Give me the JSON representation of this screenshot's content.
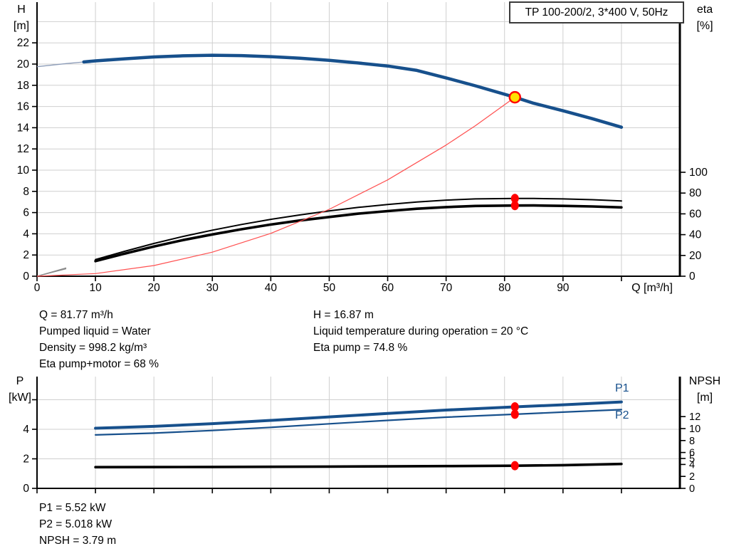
{
  "title_box": {
    "label": "TP 100-200/2, 3*400 V, 50Hz"
  },
  "axis_labels": {
    "h_line1": "H",
    "h_line2": "[m]",
    "eta_line1": "eta",
    "eta_line2": "[%]",
    "q": "Q [m³/h]",
    "p_line1": "P",
    "p_line2": "[kW]",
    "npsh_line1": "NPSH",
    "npsh_line2": "[m]",
    "p1": "P1",
    "p2": "P2"
  },
  "info_top": {
    "left": [
      "Q = 81.77 m³/h",
      "Pumped liquid = Water",
      "Density = 998.2 kg/m³",
      "Eta pump+motor = 68 %"
    ],
    "right": [
      "H = 16.87 m",
      "Liquid temperature during operation = 20 °C",
      "Eta pump = 74.8 %"
    ]
  },
  "info_bottom": [
    "P1 = 5.52 kW",
    "P2 = 5.018 kW",
    "NPSH = 3.79 m"
  ],
  "colors": {
    "curve_blue": "#17508c",
    "thin_blue": "#8c9cb8",
    "curve_black": "#000000",
    "thin_black": "#8a8a8a",
    "system_red": "#ff5050",
    "marker_red": "#ff0000",
    "duty_yellow": "#ffdf00",
    "grid": "#cfcfcf",
    "axis": "#000000"
  },
  "chart_data": [
    {
      "type": "line",
      "title": "TP 100-200/2, 3*400 V, 50Hz",
      "xlabel": "Q [m³/h]",
      "ylabel_left": "H [m]",
      "ylabel_right": "eta [%]",
      "x_range": [
        0,
        110
      ],
      "left_range": [
        0,
        26
      ],
      "right_range": [
        0,
        100
      ],
      "grid": true,
      "x_grid": [
        10,
        20,
        30,
        40,
        50,
        60,
        70,
        80,
        90,
        100
      ],
      "x_ticks": [
        0,
        10,
        20,
        30,
        40,
        50,
        60,
        70,
        80,
        90,
        100
      ],
      "x_tick_labels": [
        0,
        10,
        20,
        30,
        40,
        50,
        60,
        70,
        80,
        90
      ],
      "left_grid": [
        2,
        4,
        6,
        8,
        10,
        12,
        14,
        16,
        18,
        20,
        22,
        24
      ],
      "left_ticks": [
        0,
        2,
        4,
        6,
        8,
        10,
        12,
        14,
        16,
        18,
        20,
        22
      ],
      "left_tick_labels": [
        0,
        2,
        4,
        6,
        8,
        10,
        12,
        14,
        16,
        18,
        20,
        22
      ],
      "right_ticks": [
        0,
        20,
        40,
        60,
        80,
        100
      ],
      "right_tick_labels": [
        0,
        20,
        40,
        60,
        80,
        100
      ],
      "series": [
        {
          "name": "eta-pump-curve",
          "label": "Eta pump",
          "axis": "right",
          "color": "#000000",
          "thin_color": "#8a8a8a",
          "width": 2,
          "thin_until": 8,
          "points": [
            [
              0,
              0
            ],
            [
              5,
              8
            ],
            [
              10,
              16
            ],
            [
              15,
              24
            ],
            [
              20,
              31.5
            ],
            [
              25,
              38.3
            ],
            [
              30,
              44.3
            ],
            [
              35,
              49.8
            ],
            [
              40,
              54.7
            ],
            [
              45,
              59
            ],
            [
              50,
              62.8
            ],
            [
              55,
              66.2
            ],
            [
              60,
              69
            ],
            [
              65,
              71.4
            ],
            [
              70,
              73.2
            ],
            [
              75,
              74.4
            ],
            [
              81.77,
              74.8
            ],
            [
              85,
              74.8
            ],
            [
              90,
              74.4
            ],
            [
              95,
              73.6
            ],
            [
              100,
              72.4
            ]
          ]
        },
        {
          "name": "eta-pump-motor-curve",
          "label": "Eta pump+motor",
          "axis": "right",
          "color": "#000000",
          "thin_color": "#8a8a8a",
          "width": 3.6,
          "thin_until": 8,
          "points": [
            [
              0,
              0
            ],
            [
              5,
              7.2
            ],
            [
              10,
              14.5
            ],
            [
              15,
              21.8
            ],
            [
              20,
              28.6
            ],
            [
              25,
              34.8
            ],
            [
              30,
              40.2
            ],
            [
              35,
              45.2
            ],
            [
              40,
              49.7
            ],
            [
              45,
              53.6
            ],
            [
              50,
              57
            ],
            [
              55,
              60.2
            ],
            [
              60,
              62.7
            ],
            [
              65,
              64.9
            ],
            [
              70,
              66.5
            ],
            [
              75,
              67.6
            ],
            [
              81.77,
              68
            ],
            [
              85,
              68.1
            ],
            [
              90,
              67.7
            ],
            [
              95,
              67.1
            ],
            [
              100,
              66.2
            ]
          ]
        },
        {
          "name": "system-curve",
          "label": "System curve",
          "axis": "left",
          "color": "#ff5050",
          "width": 1.2,
          "points": [
            [
              0,
              0
            ],
            [
              10,
              0.25
            ],
            [
              20,
              1.01
            ],
            [
              30,
              2.27
            ],
            [
              40,
              4.04
            ],
            [
              50,
              6.31
            ],
            [
              60,
              9.08
            ],
            [
              70,
              12.36
            ],
            [
              75,
              14.19
            ],
            [
              81.77,
              16.87
            ]
          ]
        },
        {
          "name": "head-curve",
          "label": "H",
          "axis": "left",
          "color": "#17508c",
          "thin_color": "#8c9cb8",
          "width": 4.5,
          "thin_until": 8,
          "points": [
            [
              0,
              19.75
            ],
            [
              5,
              20.05
            ],
            [
              8,
              20.2
            ],
            [
              10,
              20.3
            ],
            [
              15,
              20.5
            ],
            [
              20,
              20.67
            ],
            [
              25,
              20.78
            ],
            [
              30,
              20.83
            ],
            [
              35,
              20.8
            ],
            [
              40,
              20.7
            ],
            [
              45,
              20.55
            ],
            [
              50,
              20.35
            ],
            [
              55,
              20.1
            ],
            [
              60,
              19.82
            ],
            [
              65,
              19.4
            ],
            [
              70,
              18.7
            ],
            [
              75,
              17.95
            ],
            [
              81.77,
              16.87
            ],
            [
              85,
              16.3
            ],
            [
              90,
              15.6
            ],
            [
              95,
              14.85
            ],
            [
              100,
              14.05
            ]
          ]
        }
      ],
      "markers": [
        {
          "name": "duty-point",
          "axis": "left",
          "q": 81.77,
          "value": 16.87,
          "style": "duty"
        },
        {
          "name": "eta-pump-point",
          "axis": "right",
          "q": 81.77,
          "value": 74.8,
          "style": "red"
        },
        {
          "name": "eta-pump-motor-point",
          "axis": "right",
          "q": 81.77,
          "value": 68,
          "style": "red"
        }
      ]
    },
    {
      "type": "line",
      "title": "",
      "xlabel": "",
      "ylabel_left": "P [kW]",
      "ylabel_right": "NPSH [m]",
      "x_range": [
        0,
        110
      ],
      "left_range": [
        0,
        7.5
      ],
      "right_range": [
        0,
        18.7
      ],
      "grid": true,
      "x_grid": [
        10,
        20,
        30,
        40,
        50,
        60,
        70,
        80,
        90,
        100
      ],
      "x_ticks": [
        0,
        10,
        20,
        30,
        40,
        50,
        60,
        70,
        80,
        90,
        100
      ],
      "x_tick_labels": [],
      "left_grid": [
        2,
        4,
        6
      ],
      "left_ticks": [
        0,
        2,
        4,
        6
      ],
      "left_tick_labels": [
        0,
        2,
        4
      ],
      "right_ticks": [
        0,
        2,
        4,
        5,
        6,
        8,
        10,
        12
      ],
      "right_tick_labels": [
        0,
        2,
        4,
        5,
        6,
        8,
        10,
        12
      ],
      "series": [
        {
          "name": "p1-curve",
          "label": "P1",
          "axis": "left",
          "color": "#17508c",
          "thin_color": "#8c9cb8",
          "width": 4,
          "thin_until": 8,
          "points": [
            [
              0,
              4.0
            ],
            [
              10,
              4.07
            ],
            [
              20,
              4.2
            ],
            [
              30,
              4.38
            ],
            [
              40,
              4.6
            ],
            [
              50,
              4.84
            ],
            [
              60,
              5.07
            ],
            [
              70,
              5.3
            ],
            [
              81.77,
              5.52
            ],
            [
              90,
              5.66
            ],
            [
              100,
              5.85
            ]
          ]
        },
        {
          "name": "p2-curve",
          "label": "P2",
          "axis": "left",
          "color": "#17508c",
          "thin_color": "#8c9cb8",
          "width": 2.2,
          "thin_until": 8,
          "points": [
            [
              0,
              3.56
            ],
            [
              10,
              3.62
            ],
            [
              20,
              3.74
            ],
            [
              30,
              3.92
            ],
            [
              40,
              4.13
            ],
            [
              50,
              4.37
            ],
            [
              60,
              4.6
            ],
            [
              70,
              4.82
            ],
            [
              81.77,
              5.018
            ],
            [
              90,
              5.16
            ],
            [
              100,
              5.33
            ]
          ]
        },
        {
          "name": "npsh-curve",
          "label": "NPSH",
          "axis": "right",
          "color": "#000000",
          "thin_color": "#8a8a8a",
          "width": 3.6,
          "thin_until": 8,
          "points": [
            [
              0,
              3.55
            ],
            [
              10,
              3.55
            ],
            [
              20,
              3.56
            ],
            [
              30,
              3.58
            ],
            [
              40,
              3.61
            ],
            [
              50,
              3.64
            ],
            [
              60,
              3.68
            ],
            [
              70,
              3.73
            ],
            [
              81.77,
              3.79
            ],
            [
              90,
              3.88
            ],
            [
              100,
              4.08
            ]
          ]
        }
      ],
      "markers": [
        {
          "name": "p1-point",
          "axis": "left",
          "q": 81.77,
          "value": 5.52,
          "style": "red"
        },
        {
          "name": "p2-point",
          "axis": "left",
          "q": 81.77,
          "value": 5.018,
          "style": "red"
        },
        {
          "name": "npsh-point",
          "axis": "right",
          "q": 81.77,
          "value": 3.79,
          "style": "red"
        }
      ]
    }
  ]
}
